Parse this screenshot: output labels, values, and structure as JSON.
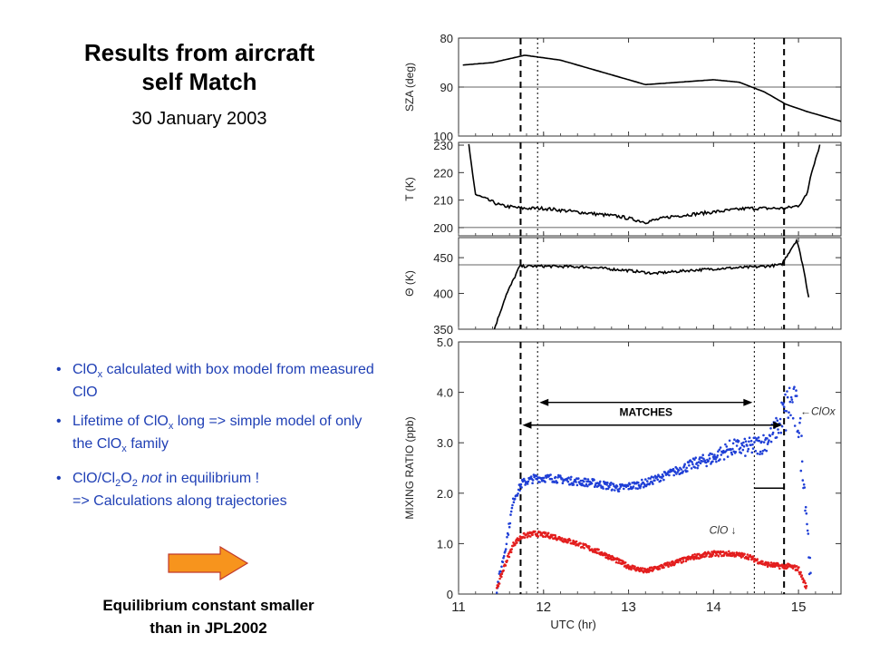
{
  "slide": {
    "title_line1": "Results from aircraft",
    "title_line2": "self Match",
    "date": "30 January 2003",
    "bullets": [
      {
        "pre": "ClO",
        "sub": "x",
        "post": " calculated with box model from measured ClO"
      },
      {
        "pre": "Lifetime of ClO",
        "sub": "x",
        "post": " long => simple model of only the ClO",
        "sub2": "x",
        "post2": " family"
      },
      {
        "pre": "ClO/Cl",
        "sub": "2",
        "mid": "O",
        "sub2": "2",
        "em": " not",
        "post": " in equilibrium !",
        "line2": "=> Calculations along trajectories"
      }
    ],
    "arrow_color": "#f7941d",
    "conclusion_line1": "Equilibrium constant smaller",
    "conclusion_line2": "than in JPL2002"
  },
  "chart_data": {
    "type": "line",
    "x_label": "UTC  (hr)",
    "xlim": [
      11,
      15.5
    ],
    "x_ticks": [
      11,
      12,
      13,
      14,
      15
    ],
    "vertical_markers": {
      "dashed": [
        11.73,
        14.83
      ],
      "dotted": [
        11.93,
        14.48
      ]
    },
    "panels": [
      {
        "ylabel": "SZA  (deg)",
        "ylim": [
          100,
          80
        ],
        "y_ticks": [
          80,
          90,
          100
        ],
        "ref_line": 90,
        "series": [
          {
            "color": "#000000",
            "x": [
              11.05,
              11.4,
              11.78,
              12.2,
              12.7,
              13.2,
              13.6,
              14.0,
              14.3,
              14.6,
              14.85,
              15.1,
              15.5
            ],
            "y": [
              85.5,
              85,
              83.5,
              84.5,
              87,
              89.5,
              89,
              88.5,
              89,
              91,
              93.5,
              95,
              97
            ]
          }
        ]
      },
      {
        "ylabel": "T  (K)",
        "ylim": [
          197,
          231
        ],
        "y_ticks": [
          200,
          210,
          220,
          230
        ],
        "ref_line": 200,
        "series": [
          {
            "color": "#000000",
            "x": [
              11.12,
              11.2,
              11.35,
              11.5,
              11.75,
              12.0,
              12.3,
              12.6,
              12.9,
              13.2,
              13.5,
              13.8,
              14.1,
              14.4,
              14.7,
              14.85,
              15.0,
              15.1,
              15.15,
              15.25
            ],
            "y": [
              230,
              212,
              210,
              208,
              207,
              207,
              206,
              205,
              204,
              202,
              204,
              205,
              206,
              207,
              207,
              207,
              208,
              212,
              220,
              230
            ]
          }
        ]
      },
      {
        "ylabel": "Θ  (K)",
        "ylim": [
          350,
          478
        ],
        "y_ticks": [
          350,
          400,
          450
        ],
        "ref_line": 440,
        "series": [
          {
            "color": "#000000",
            "x": [
              11.42,
              11.55,
              11.72,
              12.0,
              12.5,
              13.0,
              13.3,
              13.7,
              14.1,
              14.5,
              14.8,
              14.9,
              14.98,
              15.05,
              15.12
            ],
            "y": [
              350,
              395,
              438,
              438,
              437,
              432,
              428,
              432,
              435,
              437,
              440,
              460,
              475,
              440,
              395
            ]
          }
        ]
      },
      {
        "ylabel": "MIXING  RATIO  (ppb)",
        "ylim": [
          0,
          5
        ],
        "y_ticks": [
          0,
          1.0,
          2.0,
          3.0,
          4.0,
          5.0
        ],
        "series": [
          {
            "name": "ClOx",
            "label": "←ClOx",
            "color": "#1f3fd6",
            "x": [
              11.45,
              11.55,
              11.65,
              11.75,
              11.9,
              12.1,
              12.3,
              12.6,
              12.9,
              13.2,
              13.5,
              13.8,
              14.0,
              14.2,
              14.4,
              14.6,
              14.8,
              14.9,
              15.0,
              15.1,
              15.15
            ],
            "y": [
              0.1,
              0.9,
              1.9,
              2.2,
              2.3,
              2.3,
              2.25,
              2.2,
              2.1,
              2.2,
              2.4,
              2.6,
              2.7,
              2.9,
              2.9,
              3.0,
              3.4,
              3.8,
              3.5,
              1.5,
              0.05
            ]
          },
          {
            "name": "ClO",
            "label": "ClO ↓",
            "color": "#e31e1e",
            "x": [
              11.45,
              11.55,
              11.65,
              11.75,
              11.9,
              12.1,
              12.4,
              12.7,
              13.0,
              13.2,
              13.5,
              13.8,
              14.0,
              14.2,
              14.4,
              14.6,
              14.8,
              14.9,
              15.0,
              15.1
            ],
            "y": [
              0.1,
              0.6,
              1.0,
              1.15,
              1.2,
              1.15,
              1.0,
              0.8,
              0.55,
              0.45,
              0.6,
              0.75,
              0.8,
              0.8,
              0.75,
              0.6,
              0.55,
              0.55,
              0.5,
              0.1
            ]
          }
        ],
        "annotations": [
          {
            "text": "MATCHES"
          }
        ]
      }
    ]
  }
}
